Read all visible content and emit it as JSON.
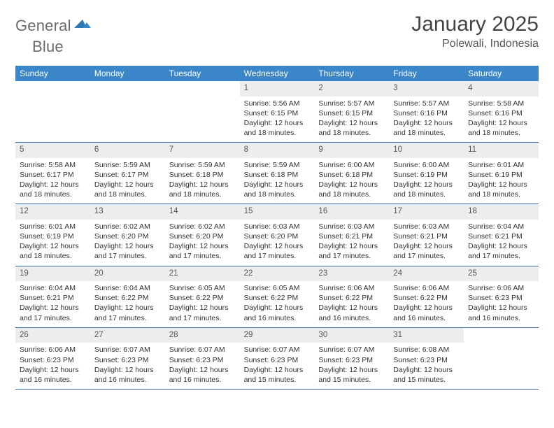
{
  "brand": {
    "text1": "General",
    "text2": "Blue"
  },
  "title": "January 2025",
  "location": "Polewali, Indonesia",
  "colors": {
    "header_bg": "#3a86c8",
    "header_text": "#ffffff",
    "daynum_bg": "#eceeee",
    "week_border": "#3a6fa0",
    "body_text": "#333333",
    "title_text": "#444444",
    "logo_text": "#6b6b6b",
    "logo_arrow": "#2f77b6"
  },
  "typography": {
    "title_fontsize": 30,
    "location_fontsize": 16,
    "dow_fontsize": 12,
    "daynum_fontsize": 11.5,
    "body_fontsize": 10.5
  },
  "dow": [
    "Sunday",
    "Monday",
    "Tuesday",
    "Wednesday",
    "Thursday",
    "Friday",
    "Saturday"
  ],
  "weeks": [
    [
      null,
      null,
      null,
      {
        "n": "1",
        "sr": "Sunrise: 5:56 AM",
        "ss": "Sunset: 6:15 PM",
        "d1": "Daylight: 12 hours",
        "d2": "and 18 minutes."
      },
      {
        "n": "2",
        "sr": "Sunrise: 5:57 AM",
        "ss": "Sunset: 6:15 PM",
        "d1": "Daylight: 12 hours",
        "d2": "and 18 minutes."
      },
      {
        "n": "3",
        "sr": "Sunrise: 5:57 AM",
        "ss": "Sunset: 6:16 PM",
        "d1": "Daylight: 12 hours",
        "d2": "and 18 minutes."
      },
      {
        "n": "4",
        "sr": "Sunrise: 5:58 AM",
        "ss": "Sunset: 6:16 PM",
        "d1": "Daylight: 12 hours",
        "d2": "and 18 minutes."
      }
    ],
    [
      {
        "n": "5",
        "sr": "Sunrise: 5:58 AM",
        "ss": "Sunset: 6:17 PM",
        "d1": "Daylight: 12 hours",
        "d2": "and 18 minutes."
      },
      {
        "n": "6",
        "sr": "Sunrise: 5:59 AM",
        "ss": "Sunset: 6:17 PM",
        "d1": "Daylight: 12 hours",
        "d2": "and 18 minutes."
      },
      {
        "n": "7",
        "sr": "Sunrise: 5:59 AM",
        "ss": "Sunset: 6:18 PM",
        "d1": "Daylight: 12 hours",
        "d2": "and 18 minutes."
      },
      {
        "n": "8",
        "sr": "Sunrise: 5:59 AM",
        "ss": "Sunset: 6:18 PM",
        "d1": "Daylight: 12 hours",
        "d2": "and 18 minutes."
      },
      {
        "n": "9",
        "sr": "Sunrise: 6:00 AM",
        "ss": "Sunset: 6:18 PM",
        "d1": "Daylight: 12 hours",
        "d2": "and 18 minutes."
      },
      {
        "n": "10",
        "sr": "Sunrise: 6:00 AM",
        "ss": "Sunset: 6:19 PM",
        "d1": "Daylight: 12 hours",
        "d2": "and 18 minutes."
      },
      {
        "n": "11",
        "sr": "Sunrise: 6:01 AM",
        "ss": "Sunset: 6:19 PM",
        "d1": "Daylight: 12 hours",
        "d2": "and 18 minutes."
      }
    ],
    [
      {
        "n": "12",
        "sr": "Sunrise: 6:01 AM",
        "ss": "Sunset: 6:19 PM",
        "d1": "Daylight: 12 hours",
        "d2": "and 18 minutes."
      },
      {
        "n": "13",
        "sr": "Sunrise: 6:02 AM",
        "ss": "Sunset: 6:20 PM",
        "d1": "Daylight: 12 hours",
        "d2": "and 17 minutes."
      },
      {
        "n": "14",
        "sr": "Sunrise: 6:02 AM",
        "ss": "Sunset: 6:20 PM",
        "d1": "Daylight: 12 hours",
        "d2": "and 17 minutes."
      },
      {
        "n": "15",
        "sr": "Sunrise: 6:03 AM",
        "ss": "Sunset: 6:20 PM",
        "d1": "Daylight: 12 hours",
        "d2": "and 17 minutes."
      },
      {
        "n": "16",
        "sr": "Sunrise: 6:03 AM",
        "ss": "Sunset: 6:21 PM",
        "d1": "Daylight: 12 hours",
        "d2": "and 17 minutes."
      },
      {
        "n": "17",
        "sr": "Sunrise: 6:03 AM",
        "ss": "Sunset: 6:21 PM",
        "d1": "Daylight: 12 hours",
        "d2": "and 17 minutes."
      },
      {
        "n": "18",
        "sr": "Sunrise: 6:04 AM",
        "ss": "Sunset: 6:21 PM",
        "d1": "Daylight: 12 hours",
        "d2": "and 17 minutes."
      }
    ],
    [
      {
        "n": "19",
        "sr": "Sunrise: 6:04 AM",
        "ss": "Sunset: 6:21 PM",
        "d1": "Daylight: 12 hours",
        "d2": "and 17 minutes."
      },
      {
        "n": "20",
        "sr": "Sunrise: 6:04 AM",
        "ss": "Sunset: 6:22 PM",
        "d1": "Daylight: 12 hours",
        "d2": "and 17 minutes."
      },
      {
        "n": "21",
        "sr": "Sunrise: 6:05 AM",
        "ss": "Sunset: 6:22 PM",
        "d1": "Daylight: 12 hours",
        "d2": "and 17 minutes."
      },
      {
        "n": "22",
        "sr": "Sunrise: 6:05 AM",
        "ss": "Sunset: 6:22 PM",
        "d1": "Daylight: 12 hours",
        "d2": "and 16 minutes."
      },
      {
        "n": "23",
        "sr": "Sunrise: 6:06 AM",
        "ss": "Sunset: 6:22 PM",
        "d1": "Daylight: 12 hours",
        "d2": "and 16 minutes."
      },
      {
        "n": "24",
        "sr": "Sunrise: 6:06 AM",
        "ss": "Sunset: 6:22 PM",
        "d1": "Daylight: 12 hours",
        "d2": "and 16 minutes."
      },
      {
        "n": "25",
        "sr": "Sunrise: 6:06 AM",
        "ss": "Sunset: 6:23 PM",
        "d1": "Daylight: 12 hours",
        "d2": "and 16 minutes."
      }
    ],
    [
      {
        "n": "26",
        "sr": "Sunrise: 6:06 AM",
        "ss": "Sunset: 6:23 PM",
        "d1": "Daylight: 12 hours",
        "d2": "and 16 minutes."
      },
      {
        "n": "27",
        "sr": "Sunrise: 6:07 AM",
        "ss": "Sunset: 6:23 PM",
        "d1": "Daylight: 12 hours",
        "d2": "and 16 minutes."
      },
      {
        "n": "28",
        "sr": "Sunrise: 6:07 AM",
        "ss": "Sunset: 6:23 PM",
        "d1": "Daylight: 12 hours",
        "d2": "and 16 minutes."
      },
      {
        "n": "29",
        "sr": "Sunrise: 6:07 AM",
        "ss": "Sunset: 6:23 PM",
        "d1": "Daylight: 12 hours",
        "d2": "and 15 minutes."
      },
      {
        "n": "30",
        "sr": "Sunrise: 6:07 AM",
        "ss": "Sunset: 6:23 PM",
        "d1": "Daylight: 12 hours",
        "d2": "and 15 minutes."
      },
      {
        "n": "31",
        "sr": "Sunrise: 6:08 AM",
        "ss": "Sunset: 6:23 PM",
        "d1": "Daylight: 12 hours",
        "d2": "and 15 minutes."
      },
      null
    ]
  ]
}
